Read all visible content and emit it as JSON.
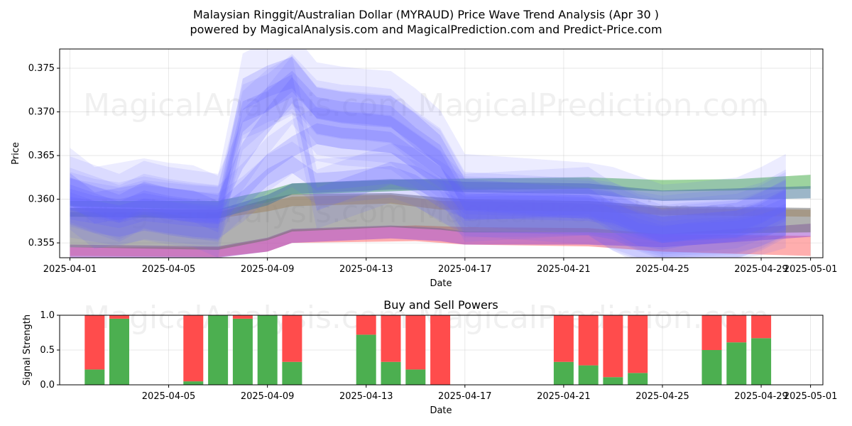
{
  "header": {
    "title_line1": "Malaysian Ringgit/Australian Dollar (MYRAUD) Price Wave Trend Analysis (Apr 30 )",
    "title_line2": "powered by MagicalAnalysis.com and MagicalPrediction.com and Predict-Price.com"
  },
  "watermarks": {
    "left": "MagicalAnalysis.com",
    "right": "MagicalPrediction.com"
  },
  "colors": {
    "wave": "#6666ff",
    "band_green": "#4caf50",
    "band_red": "#ff6b6b",
    "band_orange": "#d2a05a",
    "band_purple": "#a050d0",
    "band_gray": "#707070",
    "band_teal": "#4a7a9a",
    "buy": "#4caf50",
    "sell": "#ff4c4c"
  },
  "chart_data": [
    {
      "type": "area",
      "title": "",
      "xlabel": "Date",
      "ylabel": "Price",
      "ylim": [
        0.3533,
        0.3772
      ],
      "xlim": [
        "2025-03-31T14:00",
        "2025-05-01T12:00"
      ],
      "grid": true,
      "x_ticks": [
        "2025-04-01",
        "2025-04-05",
        "2025-04-09",
        "2025-04-13",
        "2025-04-17",
        "2025-04-21",
        "2025-04-25",
        "2025-04-29",
        "2025-05-01"
      ],
      "y_ticks": [
        "0.355",
        "0.360",
        "0.365",
        "0.370",
        "0.375"
      ],
      "bands": [
        {
          "color": "green",
          "x": [
            "2025-04-01",
            "2025-04-07",
            "2025-04-09",
            "2025-04-10",
            "2025-04-15",
            "2025-04-22",
            "2025-04-25",
            "2025-04-28",
            "2025-05-01"
          ],
          "upper": [
            0.3598,
            0.3598,
            0.361,
            0.3618,
            0.3623,
            0.3625,
            0.3622,
            0.3623,
            0.3628
          ],
          "lower": [
            0.3592,
            0.3588,
            0.3596,
            0.3605,
            0.361,
            0.3612,
            0.3609,
            0.361,
            0.3612
          ]
        },
        {
          "color": "red",
          "x": [
            "2025-04-01",
            "2025-04-07",
            "2025-04-09",
            "2025-04-10",
            "2025-04-15",
            "2025-04-17",
            "2025-04-22",
            "2025-04-25",
            "2025-05-01"
          ],
          "upper": [
            0.3545,
            0.3545,
            0.3555,
            0.3565,
            0.357,
            0.3568,
            0.3567,
            0.356,
            0.3558
          ],
          "lower": [
            0.3535,
            0.3534,
            0.354,
            0.355,
            0.3552,
            0.3548,
            0.3546,
            0.354,
            0.3535
          ]
        },
        {
          "color": "orange",
          "x": [
            "2025-04-01",
            "2025-04-07",
            "2025-04-09",
            "2025-04-10",
            "2025-04-14",
            "2025-04-16",
            "2025-04-22",
            "2025-04-25",
            "2025-05-01"
          ],
          "upper": [
            0.359,
            0.3588,
            0.3596,
            0.3603,
            0.3605,
            0.3598,
            0.3595,
            0.359,
            0.3588
          ],
          "lower": [
            0.358,
            0.3578,
            0.3586,
            0.3592,
            0.3595,
            0.3588,
            0.3586,
            0.3582,
            0.358
          ]
        },
        {
          "color": "purple",
          "x": [
            "2025-04-01",
            "2025-04-07",
            "2025-04-09",
            "2025-04-10",
            "2025-04-14",
            "2025-04-16",
            "2025-04-17",
            "2025-04-22",
            "2025-04-25",
            "2025-05-01"
          ],
          "upper": [
            0.3548,
            0.3546,
            0.3556,
            0.3566,
            0.357,
            0.3567,
            0.3563,
            0.3562,
            0.356,
            0.3572
          ],
          "lower": [
            0.3533,
            0.3533,
            0.354,
            0.355,
            0.3555,
            0.3552,
            0.3548,
            0.3548,
            0.3545,
            0.3557
          ]
        },
        {
          "color": "gray",
          "x": [
            "2025-04-01",
            "2025-04-07",
            "2025-04-09",
            "2025-04-10",
            "2025-04-14",
            "2025-04-16",
            "2025-04-17",
            "2025-04-22",
            "2025-04-25",
            "2025-05-01"
          ],
          "upper": [
            0.3585,
            0.3585,
            0.36,
            0.3606,
            0.3607,
            0.3602,
            0.36,
            0.3598,
            0.3592,
            0.359
          ],
          "lower": [
            0.3545,
            0.3542,
            0.3553,
            0.3563,
            0.3568,
            0.3565,
            0.3562,
            0.3562,
            0.356,
            0.3562
          ]
        },
        {
          "color": "teal",
          "x": [
            "2025-04-01",
            "2025-04-07",
            "2025-04-09",
            "2025-04-10",
            "2025-04-14",
            "2025-04-16",
            "2025-04-17",
            "2025-04-22",
            "2025-04-25",
            "2025-05-01"
          ],
          "upper": [
            0.359,
            0.3588,
            0.3605,
            0.3618,
            0.3623,
            0.3622,
            0.362,
            0.3618,
            0.361,
            0.3615
          ],
          "lower": [
            0.358,
            0.3578,
            0.3593,
            0.3606,
            0.3611,
            0.361,
            0.3608,
            0.3606,
            0.3598,
            0.3601
          ]
        }
      ],
      "wave_series": [
        {
          "x": [
            "2025-04-01",
            "2025-04-02",
            "2025-04-03",
            "2025-04-04",
            "2025-04-05",
            "2025-04-06",
            "2025-04-07",
            "2025-04-08",
            "2025-04-09",
            "2025-04-10",
            "2025-04-11",
            "2025-04-12",
            "2025-04-13",
            "2025-04-14",
            "2025-04-15",
            "2025-04-16",
            "2025-04-17",
            "2025-04-22",
            "2025-04-23",
            "2025-04-24",
            "2025-04-25",
            "2025-04-26",
            "2025-04-28",
            "2025-04-29",
            "2025-04-30"
          ],
          "y": [
            0.3605,
            0.3595,
            0.3585,
            0.3598,
            0.3592,
            0.3588,
            0.3585,
            0.37,
            0.3712,
            0.3735,
            0.3705,
            0.37,
            0.3698,
            0.3695,
            0.367,
            0.365,
            0.36,
            0.3592,
            0.3588,
            0.3575,
            0.3568,
            0.357,
            0.3575,
            0.3585,
            0.36
          ],
          "w": 0.0012
        },
        {
          "x": [
            "2025-04-01",
            "2025-04-02",
            "2025-04-03",
            "2025-04-04",
            "2025-04-05",
            "2025-04-06",
            "2025-04-07",
            "2025-04-08",
            "2025-04-09",
            "2025-04-10",
            "2025-04-11",
            "2025-04-12",
            "2025-04-13",
            "2025-04-14",
            "2025-04-15",
            "2025-04-16",
            "2025-04-17",
            "2025-04-22",
            "2025-04-23",
            "2025-04-24",
            "2025-04-25",
            "2025-04-26",
            "2025-04-28",
            "2025-04-29",
            "2025-04-30"
          ],
          "y": [
            0.361,
            0.36,
            0.359,
            0.3605,
            0.3598,
            0.3594,
            0.359,
            0.365,
            0.369,
            0.3725,
            0.369,
            0.3685,
            0.3683,
            0.368,
            0.366,
            0.364,
            0.359,
            0.3598,
            0.358,
            0.357,
            0.3565,
            0.3568,
            0.3572,
            0.358,
            0.3595
          ],
          "w": 0.0015
        },
        {
          "x": [
            "2025-04-01",
            "2025-04-02",
            "2025-04-03",
            "2025-04-04",
            "2025-04-05",
            "2025-04-06",
            "2025-04-07",
            "2025-04-08",
            "2025-04-09",
            "2025-04-10",
            "2025-04-11",
            "2025-04-12",
            "2025-04-13",
            "2025-04-14",
            "2025-04-15",
            "2025-04-16",
            "2025-04-17",
            "2025-04-22",
            "2025-04-23",
            "2025-04-24",
            "2025-04-25",
            "2025-04-26",
            "2025-04-28",
            "2025-04-29",
            "2025-04-30"
          ],
          "y": [
            0.36,
            0.3592,
            0.3588,
            0.3595,
            0.359,
            0.3586,
            0.3584,
            0.361,
            0.364,
            0.366,
            0.3675,
            0.367,
            0.3668,
            0.3665,
            0.3645,
            0.3625,
            0.3595,
            0.359,
            0.3585,
            0.3572,
            0.3562,
            0.3565,
            0.3568,
            0.3578,
            0.359
          ],
          "w": 0.0012
        },
        {
          "x": [
            "2025-04-01",
            "2025-04-02",
            "2025-04-03",
            "2025-04-04",
            "2025-04-05",
            "2025-04-06",
            "2025-04-07",
            "2025-04-08",
            "2025-04-09",
            "2025-04-10",
            "2025-04-11",
            "2025-04-12",
            "2025-04-13",
            "2025-04-14",
            "2025-04-15",
            "2025-04-16",
            "2025-04-17",
            "2025-04-22",
            "2025-04-23",
            "2025-04-24",
            "2025-04-25",
            "2025-04-26",
            "2025-04-28",
            "2025-04-29",
            "2025-04-30"
          ],
          "y": [
            0.3612,
            0.359,
            0.3595,
            0.36,
            0.3595,
            0.3592,
            0.358,
            0.372,
            0.3735,
            0.3745,
            0.371,
            0.3705,
            0.3702,
            0.37,
            0.368,
            0.3655,
            0.3605,
            0.3595,
            0.359,
            0.358,
            0.357,
            0.3572,
            0.3578,
            0.359,
            0.3605
          ],
          "w": 0.0018
        },
        {
          "x": [
            "2025-04-01",
            "2025-04-02",
            "2025-04-03",
            "2025-04-04",
            "2025-04-05",
            "2025-04-06",
            "2025-04-07",
            "2025-04-08",
            "2025-04-09",
            "2025-04-10",
            "2025-04-11",
            "2025-04-12",
            "2025-04-13",
            "2025-04-14",
            "2025-04-15",
            "2025-04-16",
            "2025-04-17",
            "2025-04-22",
            "2025-04-23",
            "2025-04-24",
            "2025-04-25",
            "2025-04-26",
            "2025-04-28",
            "2025-04-29",
            "2025-04-30"
          ],
          "y": [
            0.3598,
            0.3588,
            0.3583,
            0.359,
            0.3587,
            0.3583,
            0.3581,
            0.36,
            0.3625,
            0.364,
            0.362,
            0.3622,
            0.3625,
            0.3628,
            0.3618,
            0.36,
            0.3588,
            0.3585,
            0.358,
            0.3568,
            0.356,
            0.3562,
            0.3565,
            0.3572,
            0.3585
          ],
          "w": 0.001
        },
        {
          "x": [
            "2025-04-01",
            "2025-04-02",
            "2025-04-03",
            "2025-04-04",
            "2025-04-05",
            "2025-04-06",
            "2025-04-07",
            "2025-04-08",
            "2025-04-09",
            "2025-04-10",
            "2025-04-11",
            "2025-04-12",
            "2025-04-13",
            "2025-04-14",
            "2025-04-15",
            "2025-04-16",
            "2025-04-17",
            "2025-04-22",
            "2025-04-23",
            "2025-04-24",
            "2025-04-25",
            "2025-04-26",
            "2025-04-28",
            "2025-04-29",
            "2025-04-30"
          ],
          "y": [
            0.359,
            0.3585,
            0.358,
            0.3588,
            0.3585,
            0.3582,
            0.358,
            0.369,
            0.3715,
            0.373,
            0.36,
            0.361,
            0.362,
            0.363,
            0.3625,
            0.361,
            0.359,
            0.3592,
            0.3575,
            0.356,
            0.3555,
            0.356,
            0.3565,
            0.357,
            0.3578
          ],
          "w": 0.0013
        }
      ]
    },
    {
      "type": "bar",
      "title": "Buy and Sell Powers",
      "xlabel": "Date",
      "ylabel": "Signal Strength",
      "ylim": [
        0,
        1.0
      ],
      "xlim": [
        "2025-03-31T14:00",
        "2025-05-01T12:00"
      ],
      "grid": true,
      "x_ticks": [
        "2025-04-05",
        "2025-04-09",
        "2025-04-13",
        "2025-04-17",
        "2025-04-21",
        "2025-04-25",
        "2025-04-29",
        "2025-05-01"
      ],
      "y_ticks": [
        "0.0",
        "0.5",
        "1.0"
      ],
      "dates": [
        "2025-04-02",
        "2025-04-03",
        "2025-04-06",
        "2025-04-07",
        "2025-04-08",
        "2025-04-09",
        "2025-04-10",
        "2025-04-13",
        "2025-04-14",
        "2025-04-15",
        "2025-04-16",
        "2025-04-21",
        "2025-04-22",
        "2025-04-23",
        "2025-04-24",
        "2025-04-27",
        "2025-04-28",
        "2025-04-29"
      ],
      "buy": [
        0.22,
        0.95,
        0.05,
        1.0,
        0.95,
        1.0,
        0.33,
        0.72,
        0.33,
        0.22,
        0.0,
        0.33,
        0.28,
        0.11,
        0.17,
        0.5,
        0.61,
        0.67
      ],
      "sell": [
        0.78,
        0.05,
        0.95,
        0.0,
        0.05,
        0.0,
        0.67,
        0.28,
        0.67,
        0.78,
        1.0,
        0.67,
        0.72,
        0.89,
        0.83,
        0.5,
        0.39,
        0.33
      ]
    }
  ]
}
